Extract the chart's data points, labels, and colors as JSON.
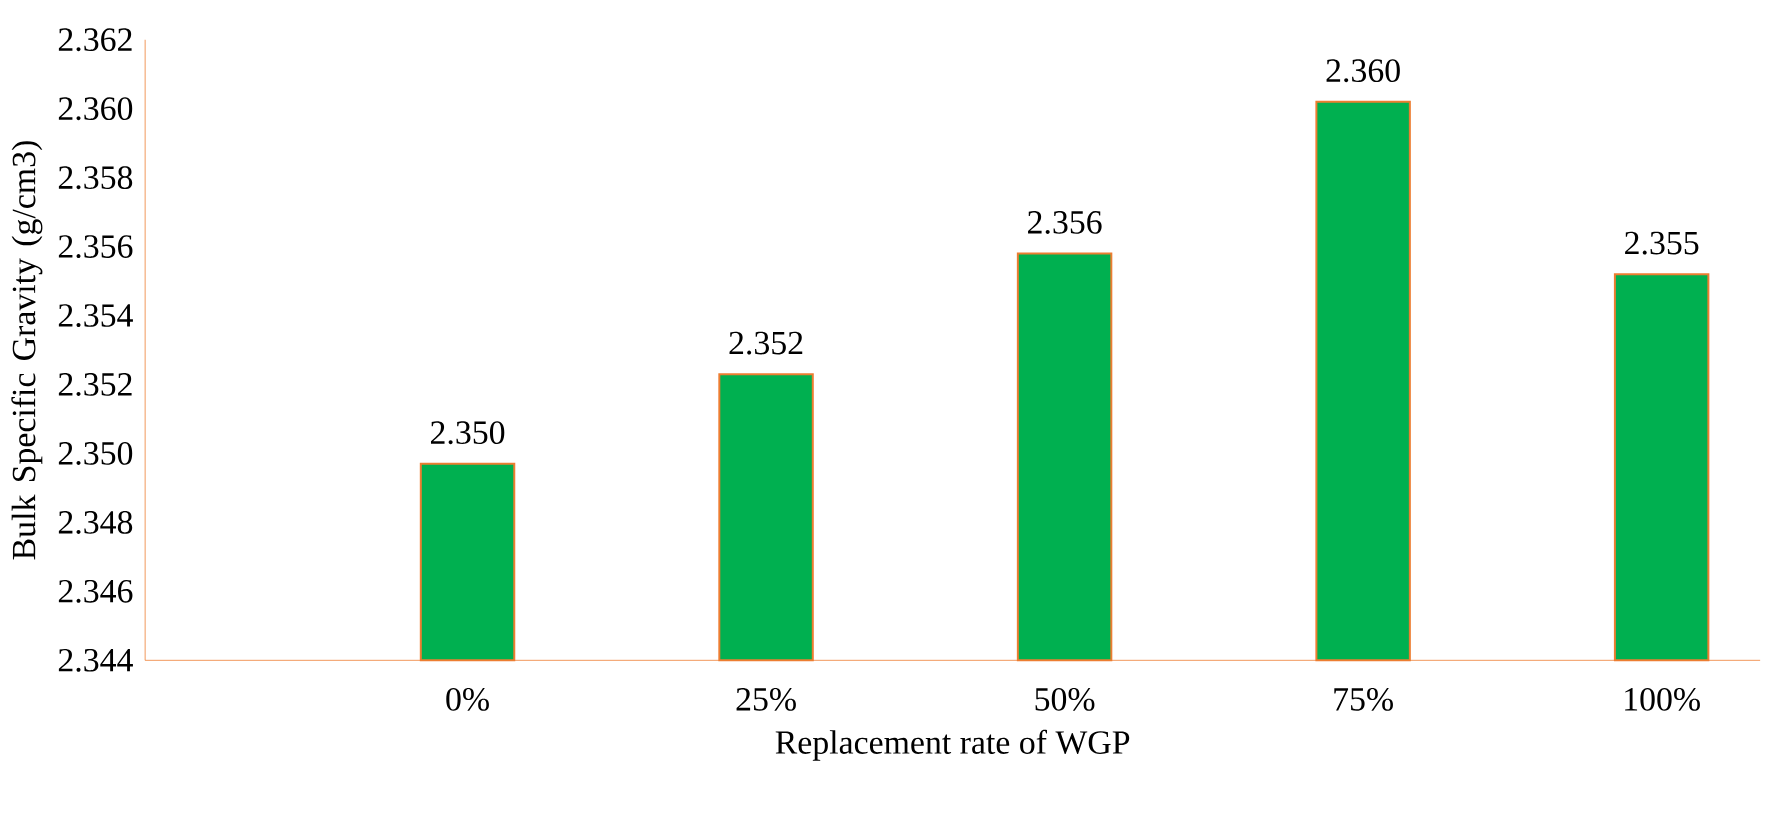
{
  "chart_data": {
    "type": "bar",
    "xlabel": "Replacement rate of WGP",
    "ylabel": "Bulk Specific Gravity (g/cm3)",
    "categories": [
      "0%",
      "25%",
      "50%",
      "75%",
      "100%"
    ],
    "values": [
      2.3497,
      2.3523,
      2.3558,
      2.3602,
      2.3552
    ],
    "value_labels": [
      "2.350",
      "2.352",
      "2.356",
      "2.360",
      "2.355"
    ],
    "color": "#00b050",
    "ylim": [
      2.344,
      2.362
    ],
    "yticks": [
      2.344,
      2.346,
      2.348,
      {
        "value": 2.35,
        "label": "2.350"
      },
      2.352,
      2.354,
      2.356,
      2.358,
      {
        "value": 2.36,
        "label": "2.360"
      },
      2.362
    ]
  }
}
